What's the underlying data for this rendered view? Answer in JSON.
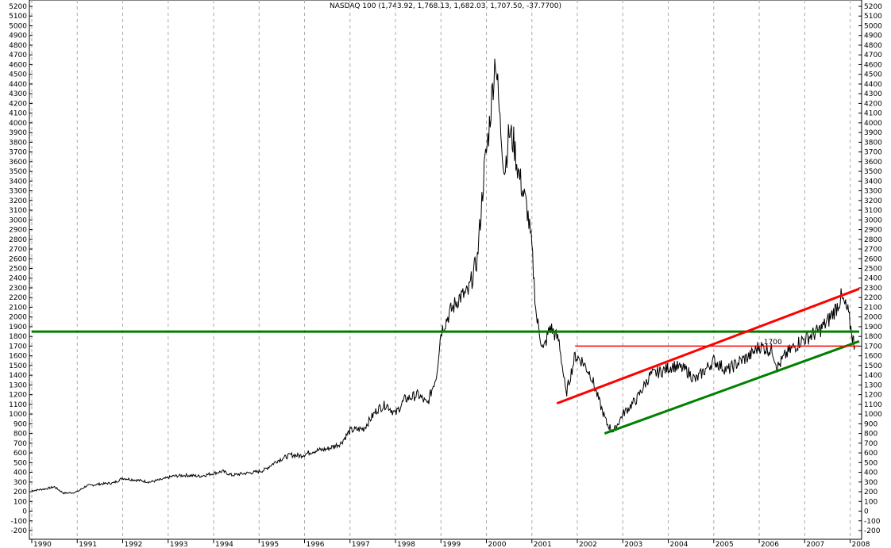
{
  "chart_data": {
    "type": "line",
    "title": "NASDAQ 100 (1,743.92, 1,768.13, 1,682.03, 1,707.50, -37.7700)",
    "xlabel": "",
    "ylabel": "",
    "ylim": [
      -200,
      5200
    ],
    "yticks": [
      -200,
      -100,
      0,
      100,
      200,
      300,
      400,
      500,
      600,
      700,
      800,
      900,
      1000,
      1100,
      1200,
      1300,
      1400,
      1500,
      1600,
      1700,
      1800,
      1900,
      2000,
      2100,
      2200,
      2300,
      2400,
      2500,
      2600,
      2700,
      2800,
      2900,
      3000,
      3100,
      3200,
      3300,
      3400,
      3500,
      3600,
      3700,
      3800,
      3900,
      4000,
      4100,
      4200,
      4300,
      4400,
      4500,
      4600,
      4700,
      4800,
      4900,
      5000,
      5100,
      5200
    ],
    "xlim": [
      1990.0,
      2008.2
    ],
    "year_labels": [
      "1990",
      "1991",
      "1992",
      "1993",
      "1994",
      "1995",
      "1996",
      "1997",
      "1998",
      "1999",
      "2000",
      "2001",
      "2002",
      "2003",
      "2004",
      "2005",
      "2006",
      "2007",
      "2008"
    ],
    "grid": "vertical-dashed",
    "colors": {
      "price": "#000000",
      "support": "#008000",
      "resistance": "#ff0000"
    },
    "series": [
      {
        "values": [
          [
            1990.0,
            210
          ],
          [
            1990.3,
            230
          ],
          [
            1990.5,
            250
          ],
          [
            1990.7,
            185
          ],
          [
            1990.9,
            190
          ],
          [
            1991.0,
            200
          ],
          [
            1991.2,
            260
          ],
          [
            1991.5,
            280
          ],
          [
            1991.8,
            290
          ],
          [
            1992.0,
            340
          ],
          [
            1992.3,
            320
          ],
          [
            1992.6,
            300
          ],
          [
            1992.9,
            330
          ],
          [
            1993.1,
            360
          ],
          [
            1993.4,
            370
          ],
          [
            1993.7,
            360
          ],
          [
            1994.0,
            390
          ],
          [
            1994.2,
            410
          ],
          [
            1994.4,
            370
          ],
          [
            1994.7,
            390
          ],
          [
            1994.9,
            400
          ],
          [
            1995.1,
            420
          ],
          [
            1995.4,
            520
          ],
          [
            1995.7,
            580
          ],
          [
            1995.9,
            570
          ],
          [
            1996.2,
            620
          ],
          [
            1996.5,
            640
          ],
          [
            1996.8,
            700
          ],
          [
            1997.0,
            830
          ],
          [
            1997.3,
            850
          ],
          [
            1997.6,
            1050
          ],
          [
            1997.8,
            1100
          ],
          [
            1998.0,
            1000
          ],
          [
            1998.2,
            1150
          ],
          [
            1998.5,
            1200
          ],
          [
            1998.7,
            1100
          ],
          [
            1998.9,
            1400
          ],
          [
            1999.0,
            1850
          ],
          [
            1999.2,
            2050
          ],
          [
            1999.4,
            2200
          ],
          [
            1999.6,
            2250
          ],
          [
            1999.8,
            2600
          ],
          [
            1999.95,
            3500
          ],
          [
            2000.05,
            3900
          ],
          [
            2000.2,
            4700
          ],
          [
            2000.3,
            4000
          ],
          [
            2000.4,
            3500
          ],
          [
            2000.5,
            3900
          ],
          [
            2000.6,
            3800
          ],
          [
            2000.7,
            3500
          ],
          [
            2000.9,
            3100
          ],
          [
            2001.0,
            2700
          ],
          [
            2001.1,
            2000
          ],
          [
            2001.25,
            1650
          ],
          [
            2001.4,
            1900
          ],
          [
            2001.6,
            1750
          ],
          [
            2001.75,
            1200
          ],
          [
            2001.95,
            1600
          ],
          [
            2002.1,
            1550
          ],
          [
            2002.3,
            1400
          ],
          [
            2002.5,
            1100
          ],
          [
            2002.65,
            900
          ],
          [
            2002.8,
            820
          ],
          [
            2003.0,
            1000
          ],
          [
            2003.3,
            1150
          ],
          [
            2003.6,
            1400
          ],
          [
            2003.9,
            1450
          ],
          [
            2004.1,
            1500
          ],
          [
            2004.4,
            1450
          ],
          [
            2004.6,
            1350
          ],
          [
            2004.9,
            1500
          ],
          [
            2005.0,
            1550
          ],
          [
            2005.3,
            1450
          ],
          [
            2005.6,
            1550
          ],
          [
            2005.8,
            1600
          ],
          [
            2006.0,
            1700
          ],
          [
            2006.3,
            1650
          ],
          [
            2006.4,
            1480
          ],
          [
            2006.6,
            1620
          ],
          [
            2006.9,
            1750
          ],
          [
            2007.1,
            1800
          ],
          [
            2007.3,
            1850
          ],
          [
            2007.5,
            1950
          ],
          [
            2007.7,
            2100
          ],
          [
            2007.8,
            2200
          ],
          [
            2007.95,
            2050
          ],
          [
            2008.05,
            1800
          ],
          [
            2008.1,
            1700
          ]
        ]
      }
    ],
    "trendlines": [
      {
        "color": "#008000",
        "from": [
          1990.0,
          1850
        ],
        "to": [
          2008.2,
          1850
        ],
        "width": 3
      },
      {
        "color": "#ff0000",
        "from": [
          2001.55,
          1110
        ],
        "to": [
          2008.2,
          2290
        ],
        "width": 3
      },
      {
        "color": "#008000",
        "from": [
          2002.6,
          800
        ],
        "to": [
          2008.2,
          1750
        ],
        "width": 3
      },
      {
        "color": "#ff0000",
        "from": [
          2001.95,
          1700
        ],
        "to": [
          2008.2,
          1700
        ],
        "width": 1.5
      }
    ],
    "annotations": [
      {
        "text": "1700",
        "x": 2006.1,
        "y": 1720
      }
    ]
  }
}
